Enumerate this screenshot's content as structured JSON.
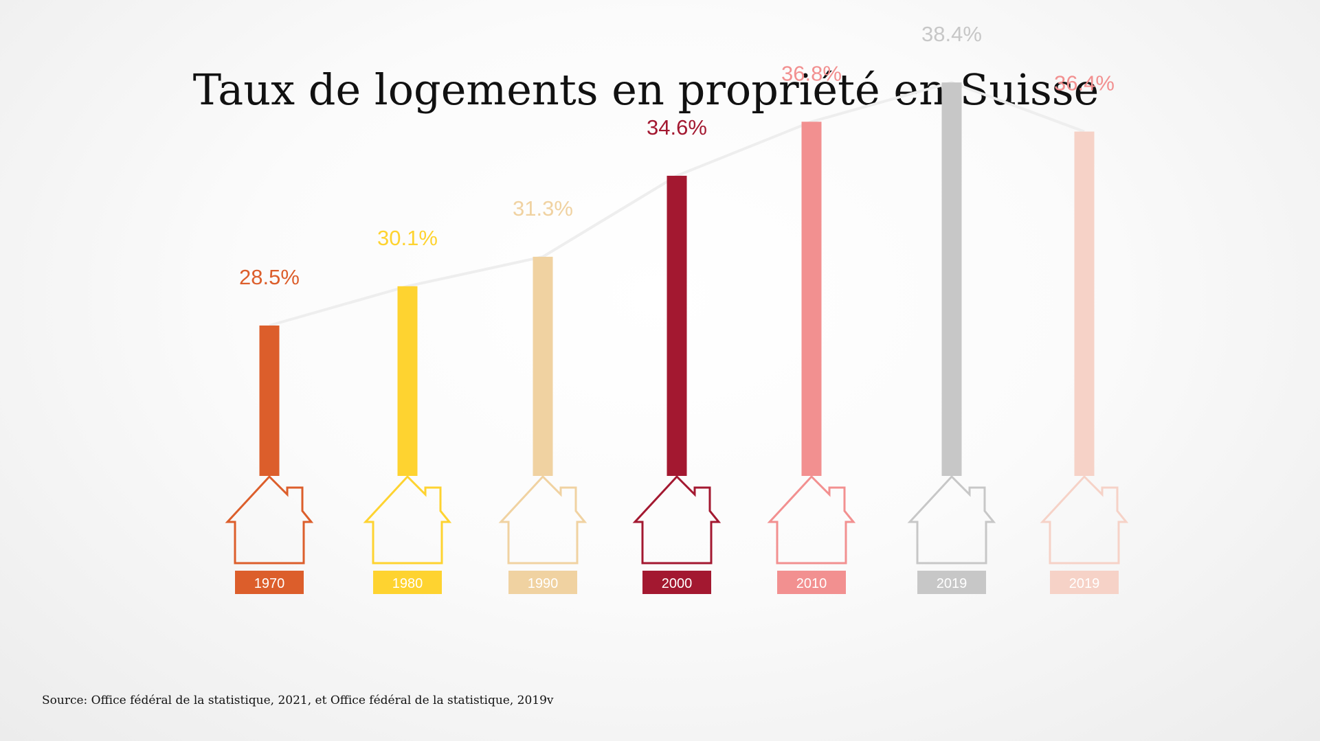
{
  "chart_data": {
    "type": "bar",
    "title": "Taux de logements en propriété en Suisse",
    "categories": [
      "1970",
      "1980",
      "1990",
      "2000",
      "2010",
      "2019",
      "2019"
    ],
    "values": [
      28.5,
      30.1,
      31.3,
      34.6,
      36.8,
      38.4,
      36.4
    ],
    "value_labels": [
      "28.5%",
      "30.1%",
      "31.3%",
      "34.6%",
      "36.8%",
      "38.4%",
      "36.4%"
    ],
    "colors": [
      "#dc5e2b",
      "#fed330",
      "#f0d2a1",
      "#a31830",
      "#f29090",
      "#c7c7c7",
      "#f6d2c7"
    ],
    "label_colors": [
      "#dc5e2b",
      "#fed330",
      "#f0d2a1",
      "#a31830",
      "#f29090",
      "#c7c7c7",
      "#f29090"
    ],
    "trend_line_color": "#eeeeee",
    "xlabel": "",
    "ylabel": "",
    "grid": false,
    "legend": "none",
    "icon": "house-outline-icon"
  },
  "source": "Source: Office fédéral de la statistique, 2021, et Office fédéral de la statistique, 2019v"
}
